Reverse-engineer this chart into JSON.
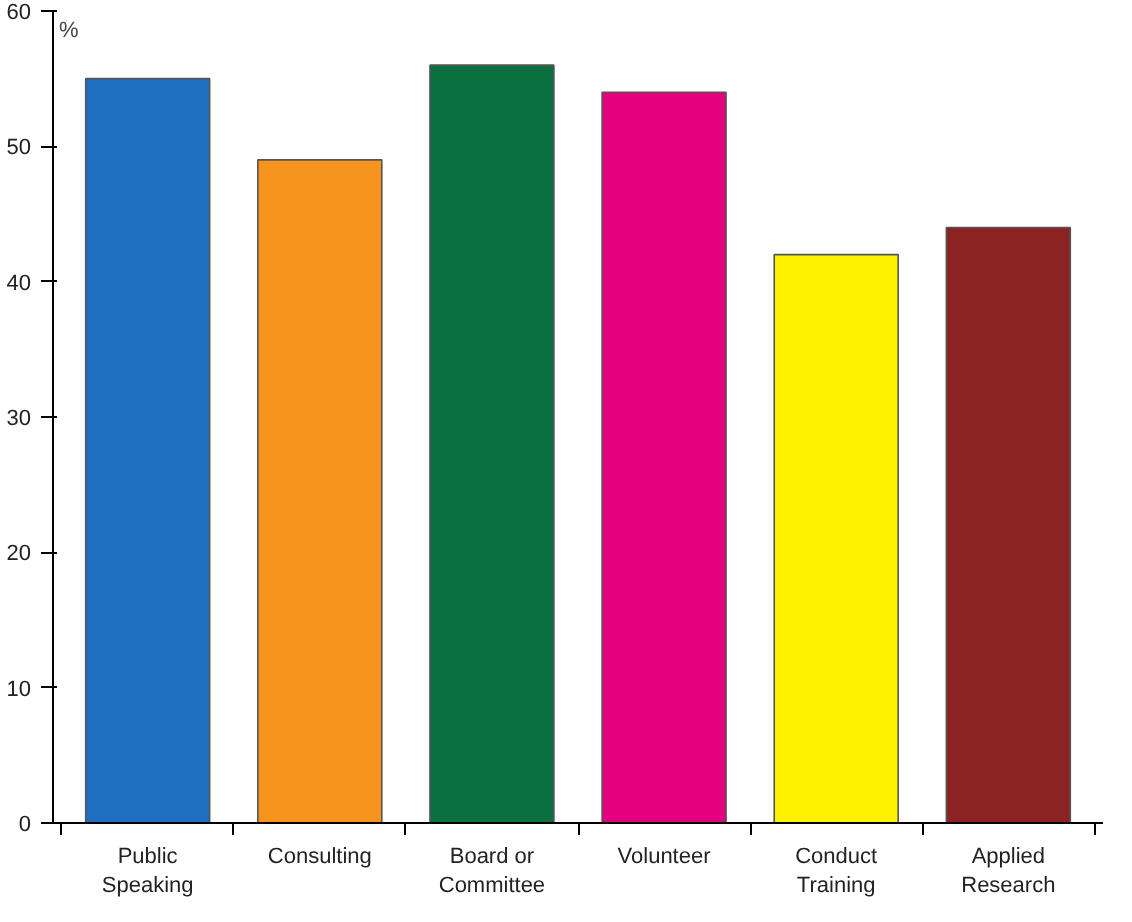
{
  "chart_data": {
    "type": "bar",
    "ylabel": "%",
    "categories": [
      "Public\nSpeaking",
      "Consulting",
      "Board or\nCommittee",
      "Volunteer",
      "Conduct\nTraining",
      "Applied\nResearch"
    ],
    "values": [
      55,
      49,
      56,
      54,
      42,
      44
    ],
    "colors": [
      "#1f6fc0",
      "#f7941d",
      "#0a7040",
      "#e5007e",
      "#fff200",
      "#8b2323"
    ],
    "ylim": [
      0,
      60
    ],
    "yticks": [
      0,
      10,
      20,
      30,
      40,
      50,
      60
    ],
    "grid": false
  }
}
